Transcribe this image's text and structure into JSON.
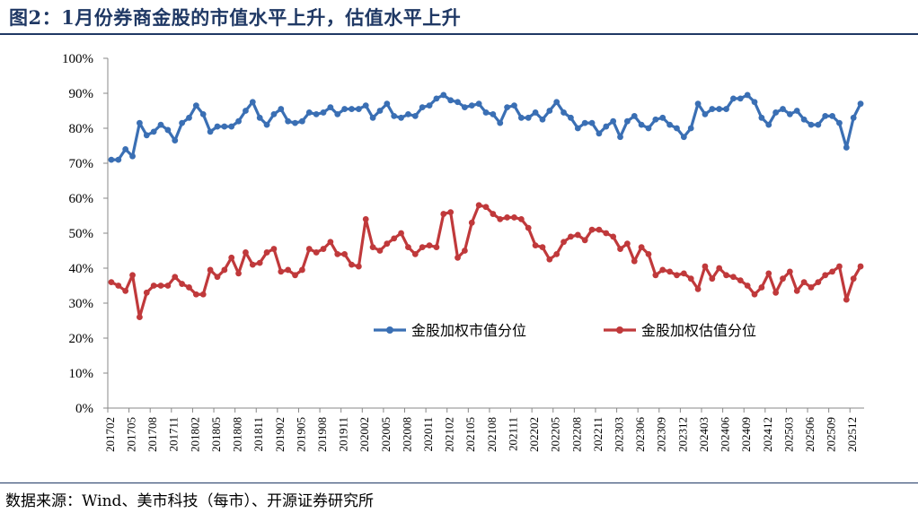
{
  "title": "图2：1月份券商金股的市值水平上升，估值水平上升",
  "source": "数据来源：Wind、美市科技（每市）、开源证券研究所",
  "chart_data": {
    "type": "line",
    "title": "",
    "xlabel": "",
    "ylabel": "",
    "ylim": [
      0,
      1
    ],
    "yticks": [
      "0%",
      "10%",
      "20%",
      "30%",
      "40%",
      "50%",
      "60%",
      "70%",
      "80%",
      "90%",
      "100%"
    ],
    "x_tick_labels": [
      "201702",
      "201705",
      "201708",
      "201711",
      "201802",
      "201805",
      "201808",
      "201811",
      "201902",
      "201905",
      "201908",
      "201911",
      "202002",
      "202005",
      "202008",
      "202011",
      "202102",
      "202105",
      "202108",
      "202111",
      "202202",
      "202205",
      "202208",
      "202211",
      "202303",
      "202306",
      "202309",
      "202312",
      "202403",
      "202406",
      "202409",
      "202412",
      "202503",
      "202506",
      "202509",
      "202512"
    ],
    "legend_position": "center-right",
    "series": [
      {
        "name": "金股加权市值分位",
        "color": "#3a6fb4",
        "values": [
          0.71,
          0.71,
          0.74,
          0.72,
          0.815,
          0.78,
          0.79,
          0.81,
          0.795,
          0.765,
          0.815,
          0.83,
          0.865,
          0.84,
          0.79,
          0.805,
          0.805,
          0.805,
          0.82,
          0.85,
          0.875,
          0.83,
          0.81,
          0.84,
          0.855,
          0.82,
          0.815,
          0.82,
          0.845,
          0.84,
          0.845,
          0.86,
          0.84,
          0.855,
          0.855,
          0.855,
          0.865,
          0.83,
          0.85,
          0.87,
          0.835,
          0.83,
          0.84,
          0.835,
          0.86,
          0.865,
          0.885,
          0.895,
          0.88,
          0.875,
          0.86,
          0.865,
          0.87,
          0.845,
          0.84,
          0.815,
          0.86,
          0.865,
          0.83,
          0.83,
          0.845,
          0.825,
          0.85,
          0.875,
          0.845,
          0.83,
          0.8,
          0.815,
          0.815,
          0.785,
          0.805,
          0.82,
          0.775,
          0.82,
          0.835,
          0.81,
          0.8,
          0.825,
          0.83,
          0.81,
          0.8,
          0.775,
          0.8,
          0.87,
          0.84,
          0.855,
          0.855,
          0.855,
          0.885,
          0.885,
          0.895,
          0.875,
          0.83,
          0.81,
          0.845,
          0.855,
          0.84,
          0.85,
          0.825,
          0.81,
          0.81,
          0.835,
          0.835,
          0.815,
          0.745,
          0.83,
          0.87
        ]
      },
      {
        "name": "金股加权估值分位",
        "color": "#c0393b",
        "values": [
          0.36,
          0.35,
          0.335,
          0.38,
          0.26,
          0.33,
          0.35,
          0.35,
          0.35,
          0.375,
          0.355,
          0.345,
          0.325,
          0.325,
          0.395,
          0.375,
          0.395,
          0.43,
          0.385,
          0.445,
          0.41,
          0.415,
          0.445,
          0.455,
          0.39,
          0.395,
          0.38,
          0.395,
          0.455,
          0.445,
          0.455,
          0.475,
          0.44,
          0.44,
          0.41,
          0.405,
          0.54,
          0.46,
          0.45,
          0.47,
          0.485,
          0.5,
          0.46,
          0.44,
          0.46,
          0.465,
          0.46,
          0.555,
          0.56,
          0.43,
          0.45,
          0.53,
          0.58,
          0.575,
          0.555,
          0.54,
          0.545,
          0.545,
          0.54,
          0.515,
          0.465,
          0.46,
          0.425,
          0.44,
          0.475,
          0.49,
          0.495,
          0.48,
          0.51,
          0.51,
          0.5,
          0.49,
          0.455,
          0.47,
          0.42,
          0.46,
          0.44,
          0.38,
          0.395,
          0.39,
          0.38,
          0.385,
          0.37,
          0.34,
          0.405,
          0.37,
          0.4,
          0.38,
          0.375,
          0.365,
          0.35,
          0.325,
          0.345,
          0.385,
          0.33,
          0.37,
          0.39,
          0.335,
          0.36,
          0.345,
          0.36,
          0.38,
          0.39,
          0.405,
          0.31,
          0.37,
          0.405
        ]
      }
    ]
  }
}
